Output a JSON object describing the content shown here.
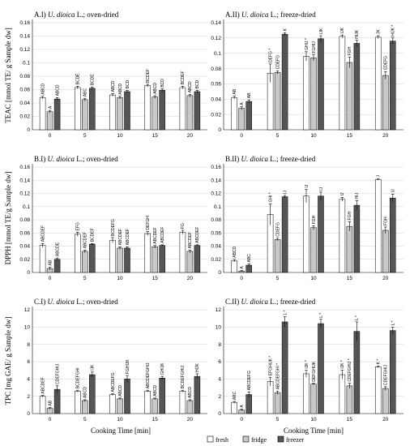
{
  "figure": {
    "y_labels": [
      "TEAC [mmol TE/ g Sample dw]",
      "DPPH [mmol TE/g Sample dw]",
      "TPC [mg GAE/ g Sample dw]"
    ],
    "x_label": "Cooking Time [min]",
    "legend": [
      "fresh",
      "fridge",
      "freezer"
    ],
    "colors": {
      "fresh": "#ffffff",
      "fridge": "#c8c8c8",
      "freezer": "#555555"
    }
  },
  "chart_data": [
    {
      "type": "bar",
      "id": "AI",
      "row": 0,
      "col": 0,
      "title_prefix": "A.I)",
      "title_species": "U. dioica",
      "title_suffix": "L.; oven-dried",
      "categories": [
        "0",
        "5",
        "10",
        "15",
        "20"
      ],
      "ylim": [
        0,
        0.16
      ],
      "yticks": [
        0,
        0.02,
        0.04,
        0.06,
        0.08,
        0.1,
        0.12,
        0.14,
        0.16
      ],
      "ytick_labels": [
        "0",
        "0.02",
        "0.04",
        "0.06",
        "0.08",
        "0.1",
        "0.12",
        "0.14",
        "0.16"
      ],
      "series": [
        {
          "name": "fresh",
          "values": [
            0.048,
            0.063,
            0.052,
            0.066,
            0.063
          ],
          "errors": [
            0.002,
            0.002,
            0.002,
            0.002,
            0.002
          ],
          "labels": [
            "ABCD",
            "BCDE",
            "ABCD",
            "BCDEF",
            "BCDEF"
          ]
        },
        {
          "name": "fridge",
          "values": [
            0.027,
            0.045,
            0.048,
            0.049,
            0.051
          ],
          "errors": [
            0.002,
            0.002,
            0.002,
            0.002,
            0.002
          ],
          "labels": [
            "A",
            "ABC",
            "ABCD",
            "ABCD",
            "ABCD"
          ]
        },
        {
          "name": "freezer",
          "values": [
            0.046,
            0.062,
            0.057,
            0.059,
            0.057
          ],
          "errors": [
            0.002,
            0.002,
            0.002,
            0.002,
            0.002
          ],
          "labels": [
            "ABCD",
            "BCDE",
            "BCD",
            "BCD",
            "BCD"
          ]
        }
      ]
    },
    {
      "type": "bar",
      "id": "AII",
      "row": 0,
      "col": 1,
      "title_prefix": "A.II)",
      "title_species": "U. dioica",
      "title_suffix": "L.; freeze-dried",
      "categories": [
        "0",
        "5",
        "10",
        "15",
        "20"
      ],
      "ylim": [
        0,
        0.14
      ],
      "yticks": [
        0,
        0.02,
        0.04,
        0.06,
        0.08,
        0.1,
        0.12,
        0.14
      ],
      "ytick_labels": [
        "0",
        "0.02",
        "0.04",
        "0.06",
        "0.08",
        "0.1",
        "0.12",
        "0.14"
      ],
      "series": [
        {
          "name": "fresh",
          "values": [
            0.042,
            0.074,
            0.096,
            0.122,
            0.121
          ],
          "errors": [
            0.002,
            0.012,
            0.006,
            0.002,
            0.002
          ],
          "labels": [
            "AB",
            "DEFG *",
            "GHIJ *",
            "IJK",
            "JK"
          ]
        },
        {
          "name": "fridge",
          "values": [
            0.028,
            0.075,
            0.094,
            0.088,
            0.071
          ],
          "errors": [
            0.002,
            0.002,
            0.004,
            0.007,
            0.005
          ],
          "labels": [
            "A",
            "CDEFG",
            "FGHIJ",
            "FGH",
            "CDEFG"
          ]
        },
        {
          "name": "freezer",
          "values": [
            0.037,
            0.125,
            0.119,
            0.113,
            0.116
          ],
          "errors": [
            0.002,
            0.002,
            0.004,
            0.004,
            0.004
          ],
          "labels": [
            "AB",
            "K",
            "IJK",
            "HIJK",
            "HIJK *"
          ]
        }
      ]
    },
    {
      "type": "bar",
      "id": "BI",
      "row": 1,
      "col": 0,
      "title_prefix": "B.I)",
      "title_species": "U. dioica",
      "title_suffix": "L.; oven-dried",
      "categories": [
        "0",
        "5",
        "10",
        "15",
        "20"
      ],
      "ylim": [
        0,
        0.16
      ],
      "yticks": [
        0,
        0.02,
        0.04,
        0.06,
        0.08,
        0.1,
        0.12,
        0.14,
        0.16
      ],
      "ytick_labels": [
        "0",
        "0.02",
        "0.04",
        "0.06",
        "0.08",
        "0.1",
        "0.12",
        "0.14",
        "0.16"
      ],
      "series": [
        {
          "name": "fresh",
          "values": [
            0.041,
            0.058,
            0.049,
            0.059,
            0.061
          ],
          "errors": [
            0.003,
            0.003,
            0.004,
            0.003,
            0.003
          ],
          "labels": [
            "ABCDEF",
            "EFG",
            "BCDEFG",
            "DEFGH",
            "FG"
          ]
        },
        {
          "name": "fridge",
          "values": [
            0.006,
            0.032,
            0.037,
            0.039,
            0.032
          ],
          "errors": [
            0.002,
            0.002,
            0.002,
            0.002,
            0.002
          ],
          "labels": [
            "AB",
            "ABCDEF",
            "ABCDEF",
            "ABCDEF",
            "ABCDEF"
          ]
        },
        {
          "name": "freezer",
          "values": [
            0.02,
            0.043,
            0.037,
            0.041,
            0.041
          ],
          "errors": [
            0.002,
            0.001,
            0.002,
            0.001,
            0.001
          ],
          "labels": [
            "ABCDE",
            "BCDEF",
            "ABCDEF",
            "ABCDEF",
            "ABCDEF"
          ]
        }
      ]
    },
    {
      "type": "bar",
      "id": "BII",
      "row": 1,
      "col": 1,
      "title_prefix": "B.II)",
      "title_species": "U. dioica",
      "title_suffix": "L.; freeze-dried",
      "categories": [
        "0",
        "5",
        "10",
        "15",
        "20"
      ],
      "ylim": [
        0,
        0.16
      ],
      "yticks": [
        0,
        0.02,
        0.04,
        0.06,
        0.08,
        0.1,
        0.12,
        0.14,
        0.16
      ],
      "ytick_labels": [
        "0",
        "0.02",
        "0.04",
        "0.06",
        "0.08",
        "0.1",
        "0.12",
        "0.14",
        "0.16"
      ],
      "series": [
        {
          "name": "fresh",
          "values": [
            0.018,
            0.088,
            0.116,
            0.111,
            0.141
          ],
          "errors": [
            0.002,
            0.016,
            0.01,
            0.003,
            0.001
          ],
          "labels": [
            "ABCD",
            "GHI *",
            "IJ",
            "IJ",
            "J"
          ]
        },
        {
          "name": "fridge",
          "values": [
            0.002,
            0.05,
            0.068,
            0.07,
            0.064
          ],
          "errors": [
            0.001,
            0.002,
            0.003,
            0.007,
            0.005
          ],
          "labels": [
            "A",
            "CDEFG",
            "FGH",
            "FGH",
            "FGH"
          ]
        },
        {
          "name": "freezer",
          "values": [
            0.011,
            0.115,
            0.116,
            0.102,
            0.113
          ],
          "errors": [
            0.002,
            0.002,
            0.006,
            0.007,
            0.006
          ],
          "labels": [
            "ABC",
            "IJ",
            "IJ",
            "HIJ",
            "IJ"
          ]
        }
      ]
    },
    {
      "type": "bar",
      "id": "CI",
      "row": 2,
      "col": 0,
      "title_prefix": "C.I)",
      "title_species": "U. dioica",
      "title_suffix": "L.; oven-dried",
      "categories": [
        "0",
        "5",
        "10",
        "15",
        "20"
      ],
      "ylim": [
        0,
        12
      ],
      "yticks": [
        0,
        2,
        4,
        6,
        8,
        10,
        12
      ],
      "ytick_labels": [
        "0",
        "2",
        "4",
        "6",
        "8",
        "10",
        "12"
      ],
      "series": [
        {
          "name": "fresh",
          "values": [
            2.0,
            2.6,
            2.2,
            2.6,
            2.6
          ],
          "errors": [
            0.1,
            0.1,
            0.1,
            0.1,
            0.1
          ],
          "labels": [
            "ABCDEF",
            "BCDEFGHI",
            "ABCDEFG",
            "ABCDEFGHIJ",
            "BCDEFGHIJ"
          ]
        },
        {
          "name": "fridge",
          "values": [
            0.6,
            1.5,
            1.7,
            1.7,
            1.5
          ],
          "errors": [
            0.1,
            0.1,
            0.1,
            0.1,
            0.1
          ],
          "labels": [
            "AB",
            "ABCD",
            "ABCD",
            "ABCD",
            "ABCD"
          ]
        },
        {
          "name": "freezer",
          "values": [
            2.8,
            4.5,
            4.0,
            4.1,
            4.3
          ],
          "errors": [
            0.4,
            0.3,
            0.4,
            0.2,
            0.3
          ],
          "labels": [
            "CDEFGHIJ",
            "IJK",
            "FGHIJK",
            "GHIJK",
            "HIJK"
          ]
        }
      ]
    },
    {
      "type": "bar",
      "id": "CII",
      "row": 2,
      "col": 1,
      "title_prefix": "C.II)",
      "title_species": "U. dioica",
      "title_suffix": "L.; freeze-dried",
      "categories": [
        "0",
        "5",
        "10",
        "15",
        "20"
      ],
      "ylim": [
        0,
        12
      ],
      "yticks": [
        0,
        2,
        4,
        6,
        8,
        10,
        12
      ],
      "ytick_labels": [
        "0",
        "2",
        "4",
        "6",
        "8",
        "10",
        "12"
      ],
      "series": [
        {
          "name": "fresh",
          "values": [
            1.3,
            3.7,
            4.6,
            4.5,
            5.4
          ],
          "errors": [
            0.1,
            0.5,
            0.4,
            0.5,
            0.1
          ],
          "labels": [
            "ABC",
            "EFGHIJK *",
            "IJK *",
            "IJK *",
            "K *"
          ]
        },
        {
          "name": "fridge",
          "values": [
            0.4,
            2.4,
            3.4,
            3.2,
            2.9
          ],
          "errors": [
            0.1,
            0.2,
            0.1,
            0.3,
            0.2
          ],
          "labels": [
            "A",
            "ABCDEFGHI *",
            "DEFGHIJK",
            "CDEFGHIJ *",
            "CDEFGHIJ"
          ]
        },
        {
          "name": "freezer",
          "values": [
            2.2,
            10.6,
            10.4,
            9.5,
            9.6
          ],
          "errors": [
            0.3,
            0.6,
            0.5,
            1.1,
            0.4
          ],
          "labels": [
            "ABCDEFG",
            "L *",
            "L *",
            "L *",
            "L *"
          ]
        }
      ]
    }
  ]
}
